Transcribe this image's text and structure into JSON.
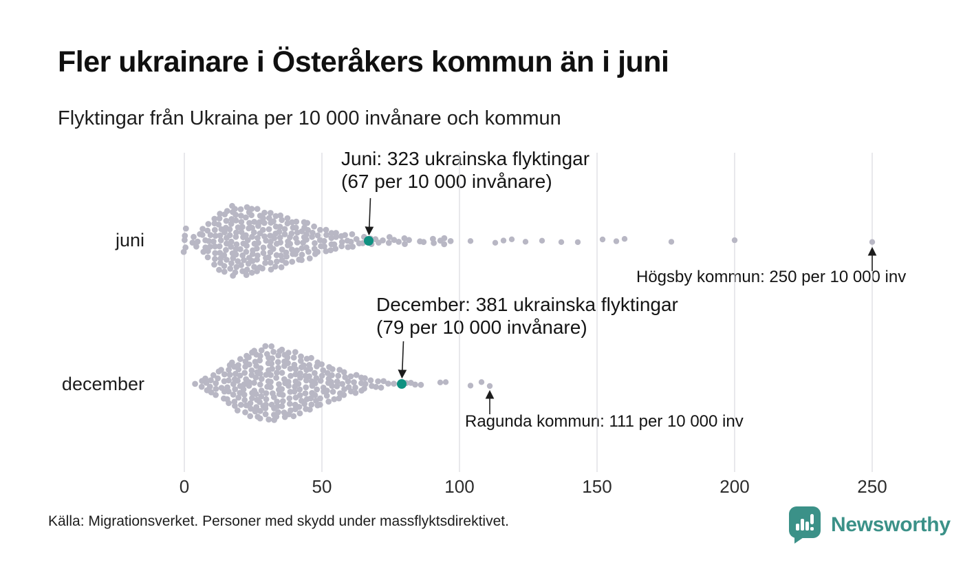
{
  "page": {
    "title": "Fler ukrainare i Österåkers kommun än i juni",
    "subtitle": "Flyktingar från Ukraina per 10 000 invånare och kommun",
    "source": "Källa: Migrationsverket. Personer med skydd under massflyktsdirektivet.",
    "brand": "Newsworthy"
  },
  "colors": {
    "dot": "#b8b7c4",
    "highlight": "#0f9181",
    "gridline": "#d9d9de",
    "arrow": "#1c1c1c",
    "brand_teal": "#3b9188"
  },
  "chart_data": {
    "type": "beeswarm",
    "title": "Fler ukrainare i Österåkers kommun än i juni",
    "subtitle": "Flyktingar från Ukraina per 10 000 invånare och kommun",
    "x_axis": {
      "ticks": [
        0,
        50,
        100,
        150,
        200,
        250
      ],
      "range": [
        0,
        260
      ],
      "unit": "per 10 000 invånare",
      "grid": true
    },
    "legend": "none",
    "rows": [
      {
        "label": "juni",
        "highlight": {
          "value": 67,
          "line1": "Juni: 323 ukrainska flyktingar",
          "line2": "(67 per 10 000 invånare)"
        },
        "outlier": {
          "value": 250,
          "label": "Högsby kommun: 250 per 10 000 inv"
        },
        "bins": [
          [
            0,
            5
          ],
          [
            3,
            2
          ],
          [
            5,
            3
          ],
          [
            7,
            5
          ],
          [
            9,
            7
          ],
          [
            11,
            9
          ],
          [
            13,
            11
          ],
          [
            15,
            12
          ],
          [
            17,
            13
          ],
          [
            19,
            12
          ],
          [
            21,
            12
          ],
          [
            23,
            13
          ],
          [
            25,
            12
          ],
          [
            27,
            12
          ],
          [
            29,
            11
          ],
          [
            31,
            11
          ],
          [
            33,
            10
          ],
          [
            35,
            10
          ],
          [
            37,
            9
          ],
          [
            39,
            8
          ],
          [
            41,
            8
          ],
          [
            43,
            8
          ],
          [
            45,
            7
          ],
          [
            47,
            6
          ],
          [
            49,
            5
          ],
          [
            51,
            5
          ],
          [
            53,
            4
          ],
          [
            55,
            4
          ],
          [
            57,
            3
          ],
          [
            59,
            3
          ],
          [
            61,
            3
          ],
          [
            63,
            2
          ],
          [
            65,
            2
          ],
          [
            68,
            2
          ],
          [
            70,
            2
          ],
          [
            72,
            1
          ],
          [
            74,
            2
          ],
          [
            76,
            1
          ],
          [
            78,
            1
          ],
          [
            80,
            2
          ],
          [
            82,
            1
          ],
          [
            85,
            1
          ],
          [
            87,
            1
          ],
          [
            90,
            2
          ],
          [
            93,
            1
          ],
          [
            95,
            2
          ],
          [
            97,
            1
          ]
        ],
        "singles": [
          104,
          113,
          116,
          119,
          124,
          130,
          137,
          143,
          152,
          157,
          160,
          177,
          200,
          250
        ]
      },
      {
        "label": "december",
        "highlight": {
          "value": 79,
          "line1": "December: 381 ukrainska flyktingar",
          "line2": "(79 per 10 000 invånare)"
        },
        "outlier": {
          "value": 111,
          "label": "Ragunda kommun: 111 per 10 000 inv"
        },
        "bins": [
          [
            4,
            1
          ],
          [
            6,
            2
          ],
          [
            8,
            3
          ],
          [
            10,
            4
          ],
          [
            12,
            5
          ],
          [
            14,
            6
          ],
          [
            16,
            8
          ],
          [
            18,
            9
          ],
          [
            20,
            10
          ],
          [
            22,
            11
          ],
          [
            24,
            12
          ],
          [
            26,
            13
          ],
          [
            28,
            13
          ],
          [
            30,
            14
          ],
          [
            32,
            14
          ],
          [
            34,
            13
          ],
          [
            36,
            13
          ],
          [
            38,
            12
          ],
          [
            40,
            12
          ],
          [
            42,
            11
          ],
          [
            44,
            10
          ],
          [
            46,
            10
          ],
          [
            48,
            9
          ],
          [
            50,
            8
          ],
          [
            52,
            7
          ],
          [
            54,
            6
          ],
          [
            56,
            6
          ],
          [
            58,
            5
          ],
          [
            60,
            4
          ],
          [
            62,
            4
          ],
          [
            64,
            3
          ],
          [
            66,
            3
          ],
          [
            68,
            2
          ],
          [
            70,
            2
          ],
          [
            72,
            2
          ],
          [
            74,
            1
          ],
          [
            76,
            1
          ],
          [
            80,
            1
          ],
          [
            82,
            1
          ],
          [
            84,
            1
          ],
          [
            86,
            1
          ]
        ],
        "singles": [
          93,
          95,
          104,
          108,
          111
        ]
      }
    ]
  }
}
